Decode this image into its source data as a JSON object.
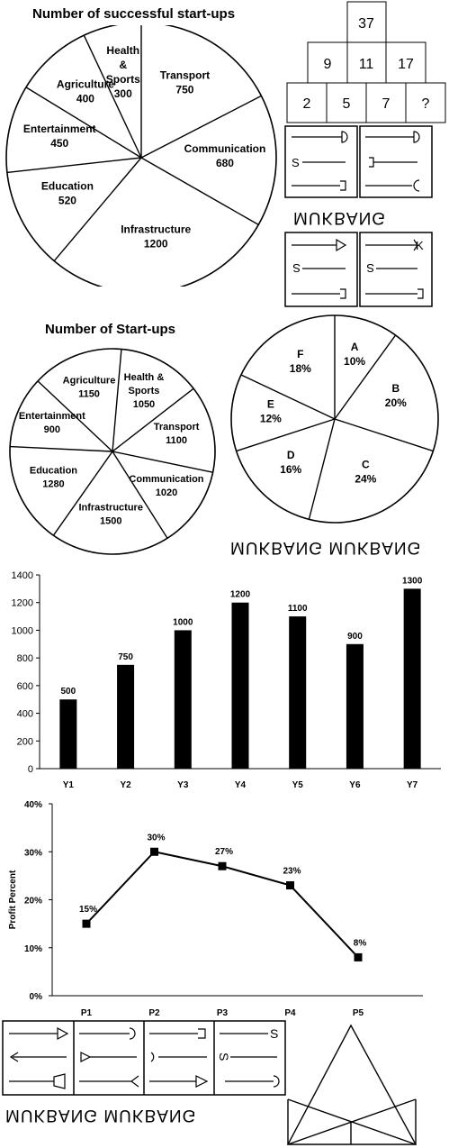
{
  "chart_data": [
    {
      "type": "pie",
      "title": "Number of successful start-ups",
      "categories": [
        "Transport",
        "Communication",
        "Infrastructure",
        "Education",
        "Entertainment",
        "Agriculture",
        "Health & Sports"
      ],
      "values": [
        750,
        680,
        1200,
        520,
        450,
        400,
        300
      ]
    },
    {
      "type": "pie",
      "title": "Number of Start-ups",
      "categories": [
        "Health & Sports",
        "Transport",
        "Communication",
        "Infrastructure",
        "Education",
        "Entertainment",
        "Agriculture"
      ],
      "values": [
        1050,
        1100,
        1020,
        1500,
        1280,
        900,
        1150
      ]
    },
    {
      "type": "pie",
      "title": "",
      "categories": [
        "A",
        "B",
        "C",
        "D",
        "E",
        "F"
      ],
      "values": [
        10,
        20,
        24,
        16,
        12,
        18
      ],
      "value_labels": [
        "10%",
        "20%",
        "24%",
        "16%",
        "12%",
        "18%"
      ]
    },
    {
      "type": "bar",
      "title": "",
      "categories": [
        "Y1",
        "Y2",
        "Y3",
        "Y4",
        "Y5",
        "Y6",
        "Y7"
      ],
      "values": [
        500,
        750,
        1000,
        1200,
        1100,
        900,
        1300
      ],
      "ylim": [
        0,
        1400
      ],
      "yticks": [
        "0",
        "200",
        "400",
        "600",
        "800",
        "1000",
        "1200",
        "1400"
      ],
      "grid": false,
      "bar_color": "#000000"
    },
    {
      "type": "line",
      "title": "",
      "ylabel": "Profit Percent",
      "categories": [
        "P1",
        "P2",
        "P3",
        "P4",
        "P5"
      ],
      "values": [
        15,
        30,
        27,
        23,
        8
      ],
      "value_labels": [
        "15%",
        "30%",
        "27%",
        "23%",
        "8%"
      ],
      "ylim": [
        0,
        40
      ],
      "yticks": [
        "0%",
        "10%",
        "20%",
        "30%",
        "40%"
      ]
    }
  ],
  "number_pyramid": [
    [
      "37"
    ],
    [
      "9",
      "11",
      "17"
    ],
    [
      "2",
      "5",
      "7",
      "?"
    ]
  ],
  "puzzle_text": {
    "top_right": "MUKBANG",
    "middle_right": "MUKBANG MUKBANG",
    "bottom_left": "MUKBANG MUKBANG"
  },
  "glyphs": {
    "s": "S",
    "k": "K"
  }
}
